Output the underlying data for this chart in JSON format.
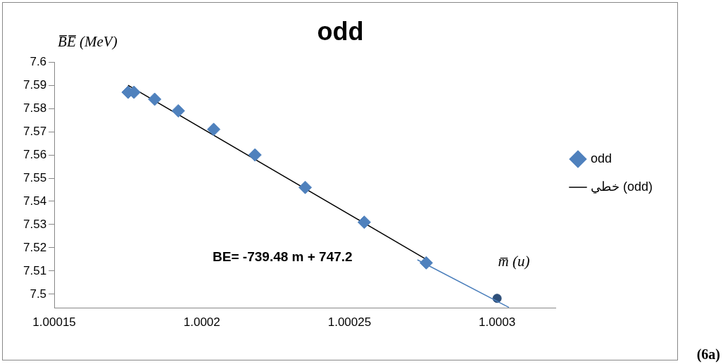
{
  "chart_data": {
    "type": "scatter",
    "title": "odd",
    "xlabel": "m̅ (u)",
    "ylabel": "B̅E̅ (MeV)",
    "xlim": [
      1.00015,
      1.00032
    ],
    "xticks": [
      1.00015,
      1.0002,
      1.00025,
      1.0003
    ],
    "ylim": [
      7.494,
      7.6
    ],
    "yticks": [
      7.5,
      7.51,
      7.52,
      7.53,
      7.54,
      7.55,
      7.56,
      7.57,
      7.58,
      7.59,
      7.6
    ],
    "grid": false,
    "legend": "right",
    "annotations": [
      "BE= -739.48 m + 747.2",
      "(6a)"
    ],
    "series": [
      {
        "name": "odd",
        "marker": "diamond",
        "color": "#4f81bd",
        "x": [
          1.000175,
          1.000177,
          1.000184,
          1.000192,
          1.000204,
          1.000218,
          1.000235,
          1.000255,
          1.000276
        ],
        "values": [
          7.587,
          7.587,
          7.584,
          7.579,
          7.571,
          7.56,
          7.546,
          7.531,
          7.5135
        ]
      },
      {
        "name": "خطي (odd)",
        "type": "line",
        "marker": "none",
        "color": "#000000",
        "x": [
          1.000175,
          1.000276
        ],
        "values": [
          7.59,
          7.515
        ]
      },
      {
        "type": "line",
        "marker": "none",
        "color": "#4a7ebb",
        "x": [
          1.000273,
          1.000304
        ],
        "values": [
          7.5148,
          7.4943
        ]
      },
      {
        "marker": "circle",
        "color": "#2e4f7a",
        "x": [
          1.0003
        ],
        "values": [
          7.4982
        ]
      }
    ]
  }
}
